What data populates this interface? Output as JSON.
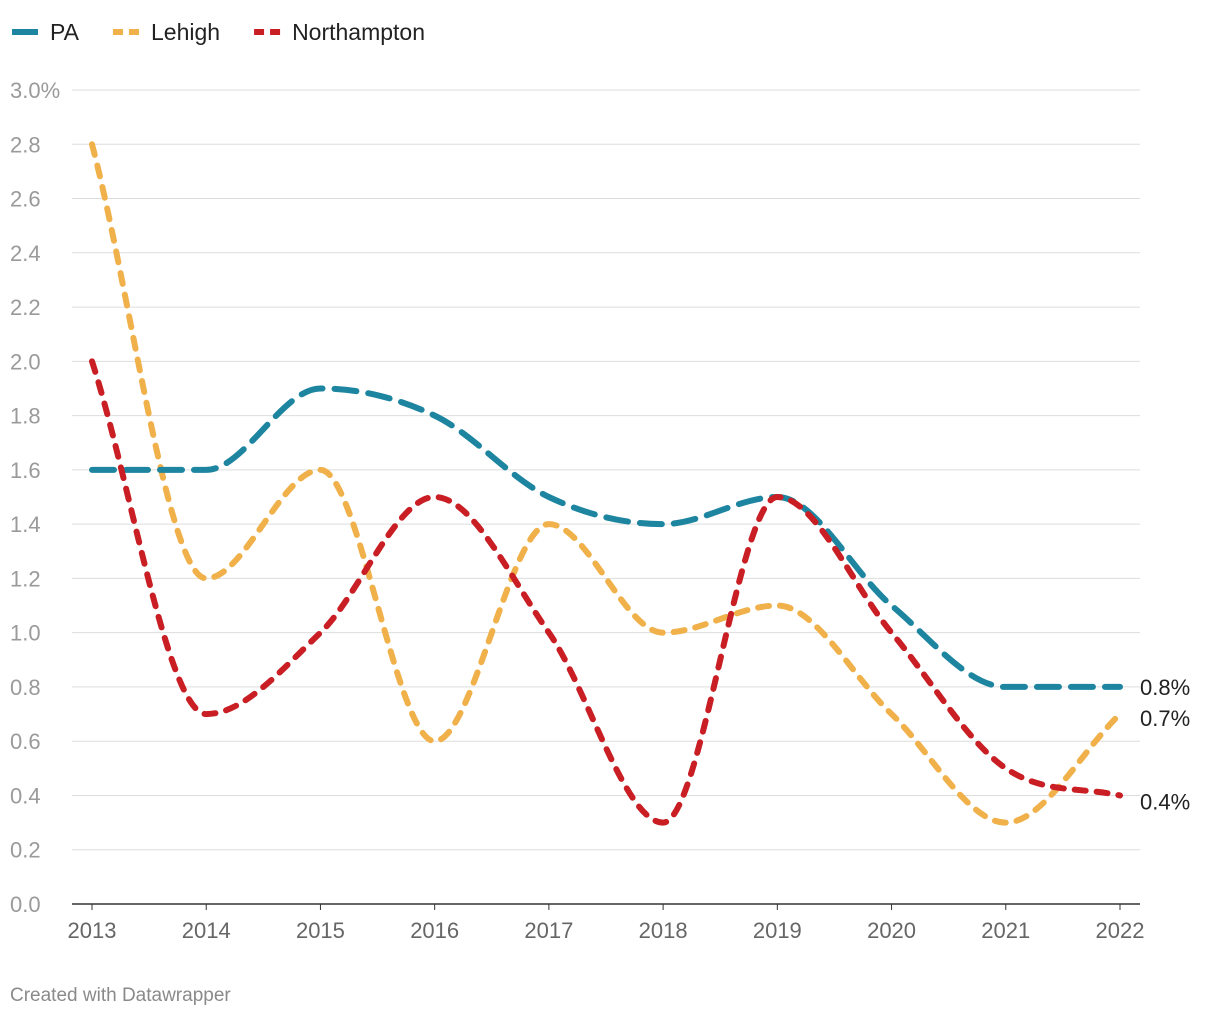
{
  "chart_data": {
    "type": "line",
    "title": "",
    "xlabel": "",
    "ylabel": "",
    "x": [
      2013,
      2014,
      2015,
      2016,
      2017,
      2018,
      2019,
      2020,
      2021,
      2022
    ],
    "ylim": [
      0,
      3.0
    ],
    "yticks": [
      0,
      0.2,
      0.4,
      0.6,
      0.8,
      1.0,
      1.2,
      1.4,
      1.6,
      1.8,
      2.0,
      2.2,
      2.4,
      2.6,
      2.8,
      3.0
    ],
    "ytick_labels": [
      "0.0",
      "0.2",
      "0.4",
      "0.6",
      "0.8",
      "1.0",
      "1.2",
      "1.4",
      "1.6",
      "1.8",
      "2.0",
      "2.2",
      "2.4",
      "2.6",
      "2.8",
      "3.0%"
    ],
    "xtick_labels": [
      "2013",
      "2014",
      "2015",
      "2016",
      "2017",
      "2018",
      "2019",
      "2020",
      "2021",
      "2022"
    ],
    "grid": true,
    "legend_position": "top-left",
    "series": [
      {
        "name": "PA",
        "color": "#1d85a0",
        "style": "long-dash",
        "values": [
          1.6,
          1.6,
          1.9,
          1.8,
          1.5,
          1.4,
          1.5,
          1.1,
          0.8,
          0.8
        ],
        "end_label": "0.8%"
      },
      {
        "name": "Lehigh",
        "color": "#f0b04a",
        "style": "short-dash",
        "values": [
          2.8,
          1.2,
          1.6,
          0.6,
          1.4,
          1.0,
          1.1,
          0.7,
          0.3,
          0.7
        ],
        "end_label": "0.7%"
      },
      {
        "name": "Northampton",
        "color": "#c81e24",
        "style": "short-dash",
        "values": [
          2.0,
          0.7,
          1.0,
          1.5,
          1.0,
          0.3,
          1.5,
          1.0,
          0.5,
          0.4
        ],
        "end_label": "0.4%"
      }
    ]
  },
  "credit": "Created with Datawrapper"
}
